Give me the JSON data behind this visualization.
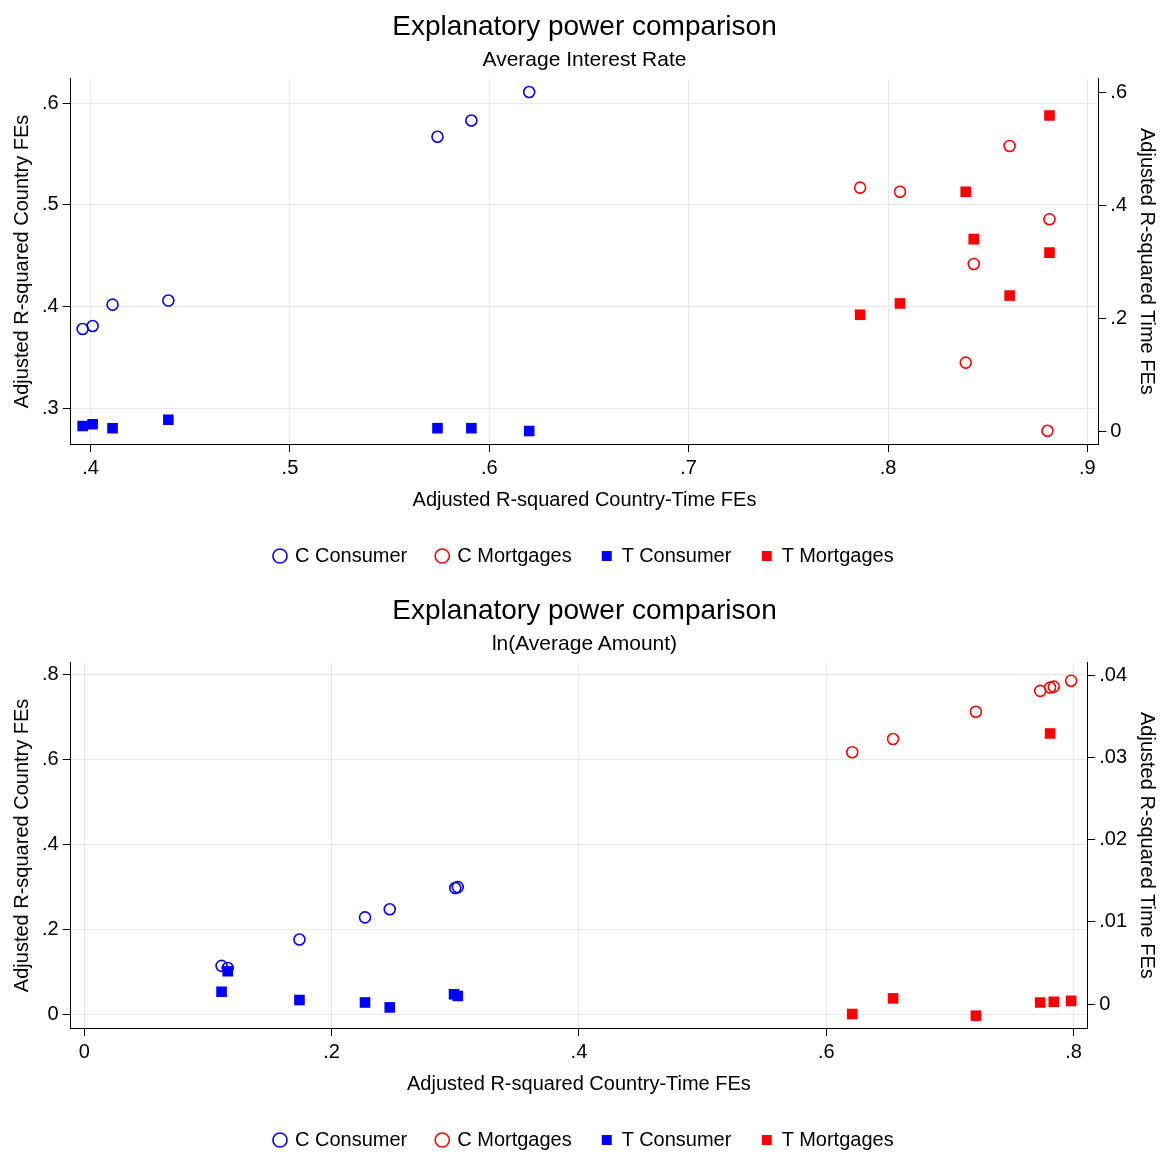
{
  "chart_data": [
    {
      "type": "scatter",
      "title": "Explanatory power comparison",
      "subtitle": "Average Interest Rate",
      "xlabel": "Adjusted R-squared Country-Time FEs",
      "ylabel": "Adjusted R-squared Country FEs",
      "y2label": "Adjusted R-squared Time FEs",
      "xlim": [
        0.39,
        0.9055
      ],
      "xticks": [
        {
          "value": 0.4,
          "label": ".4"
        },
        {
          "value": 0.5,
          "label": ".5"
        },
        {
          "value": 0.6,
          "label": ".6"
        },
        {
          "value": 0.7,
          "label": ".7"
        },
        {
          "value": 0.8,
          "label": ".8"
        },
        {
          "value": 0.9,
          "label": ".9"
        }
      ],
      "ylim": [
        0.265,
        0.624
      ],
      "yticks": [
        {
          "value": 0.3,
          "label": ".3"
        },
        {
          "value": 0.4,
          "label": ".4"
        },
        {
          "value": 0.5,
          "label": ".5"
        },
        {
          "value": 0.6,
          "label": ".6"
        }
      ],
      "y2lim": [
        -0.022,
        0.625
      ],
      "y2ticks": [
        0,
        {
          "value": 0.2,
          "label": ".2"
        },
        {
          "value": 0.4,
          "label": ".4"
        },
        {
          "value": 0.6,
          "label": ".6"
        }
      ],
      "grid": true,
      "legend": "bottom",
      "series": [
        {
          "name": "C Consumer",
          "color": "#0000ff",
          "marker": "circle",
          "x": [
            0.396,
            0.401,
            0.411,
            0.439,
            0.574,
            0.591,
            0.62
          ],
          "values": [
            0.378,
            0.381,
            0.402,
            0.406,
            0.567,
            0.583,
            0.611
          ]
        },
        {
          "name": "C Mortgages",
          "color": "#ff0000",
          "marker": "circle",
          "x": [
            0.786,
            0.806,
            0.861,
            0.881,
            0.843,
            0.839,
            0.88
          ],
          "values": [
            0.517,
            0.513,
            0.558,
            0.486,
            0.442,
            0.345,
            0.278
          ]
        },
        {
          "name": "T Consumer",
          "color": "#0000ff",
          "marker": "square",
          "axis": "y2",
          "x": [
            0.396,
            0.401,
            0.411,
            0.439,
            0.574,
            0.591,
            0.62
          ],
          "values": [
            0.01,
            0.013,
            0.006,
            0.021,
            0.006,
            0.006,
            0.001
          ]
        },
        {
          "name": "T Mortgages",
          "color": "#ff0000",
          "marker": "square",
          "axis": "y2",
          "x": [
            0.881,
            0.839,
            0.843,
            0.881,
            0.861,
            0.806,
            0.786
          ],
          "values": [
            0.56,
            0.425,
            0.341,
            0.317,
            0.241,
            0.227,
            0.207
          ]
        }
      ]
    },
    {
      "type": "scatter",
      "title": "Explanatory power comparison",
      "subtitle": "ln(Average Amount)",
      "xlabel": "Adjusted R-squared Country-Time FEs",
      "ylabel": "Adjusted R-squared Country FEs",
      "y2label": "Adjusted R-squared Time FEs",
      "xlim": [
        -0.011,
        0.811
      ],
      "xticks": [
        0,
        {
          "value": 0.2,
          "label": ".2"
        },
        {
          "value": 0.4,
          "label": ".4"
        },
        {
          "value": 0.6,
          "label": ".6"
        },
        {
          "value": 0.8,
          "label": ".8"
        }
      ],
      "ylim": [
        -0.031,
        0.827
      ],
      "yticks": [
        0,
        {
          "value": 0.2,
          "label": ".2"
        },
        {
          "value": 0.4,
          "label": ".4"
        },
        {
          "value": 0.6,
          "label": ".6"
        },
        {
          "value": 0.8,
          "label": ".8"
        }
      ],
      "y2lim": [
        -0.0029,
        0.0415
      ],
      "y2ticks": [
        0,
        {
          "value": 0.01,
          "label": ".01"
        },
        {
          "value": 0.02,
          "label": ".02"
        },
        {
          "value": 0.03,
          "label": ".03"
        },
        {
          "value": 0.04,
          "label": ".04"
        }
      ],
      "grid": true,
      "legend": "bottom",
      "series": [
        {
          "name": "C Consumer",
          "color": "#0000ff",
          "marker": "circle",
          "x": [
            0.111,
            0.116,
            0.174,
            0.227,
            0.247,
            0.3,
            0.302
          ],
          "values": [
            0.115,
            0.11,
            0.177,
            0.229,
            0.248,
            0.298,
            0.3
          ]
        },
        {
          "name": "C Mortgages",
          "color": "#ff0000",
          "marker": "circle",
          "x": [
            0.621,
            0.654,
            0.721,
            0.773,
            0.781,
            0.784,
            0.798
          ],
          "values": [
            0.617,
            0.648,
            0.712,
            0.761,
            0.769,
            0.771,
            0.785
          ]
        },
        {
          "name": "T Consumer",
          "color": "#0000ff",
          "marker": "square",
          "axis": "y2",
          "x": [
            0.111,
            0.116,
            0.174,
            0.227,
            0.247,
            0.299,
            0.302
          ],
          "values": [
            0.0015,
            0.004,
            0.0005,
            0.0002,
            -0.0004,
            0.0012,
            0.001
          ]
        },
        {
          "name": "T Mortgages",
          "color": "#ff0000",
          "marker": "square",
          "axis": "y2",
          "x": [
            0.621,
            0.654,
            0.721,
            0.773,
            0.781,
            0.784,
            0.798
          ],
          "values": [
            -0.0012,
            0.0007,
            -0.0014,
            0.0002,
            0.0329,
            0.0003,
            0.0004
          ]
        }
      ]
    }
  ]
}
